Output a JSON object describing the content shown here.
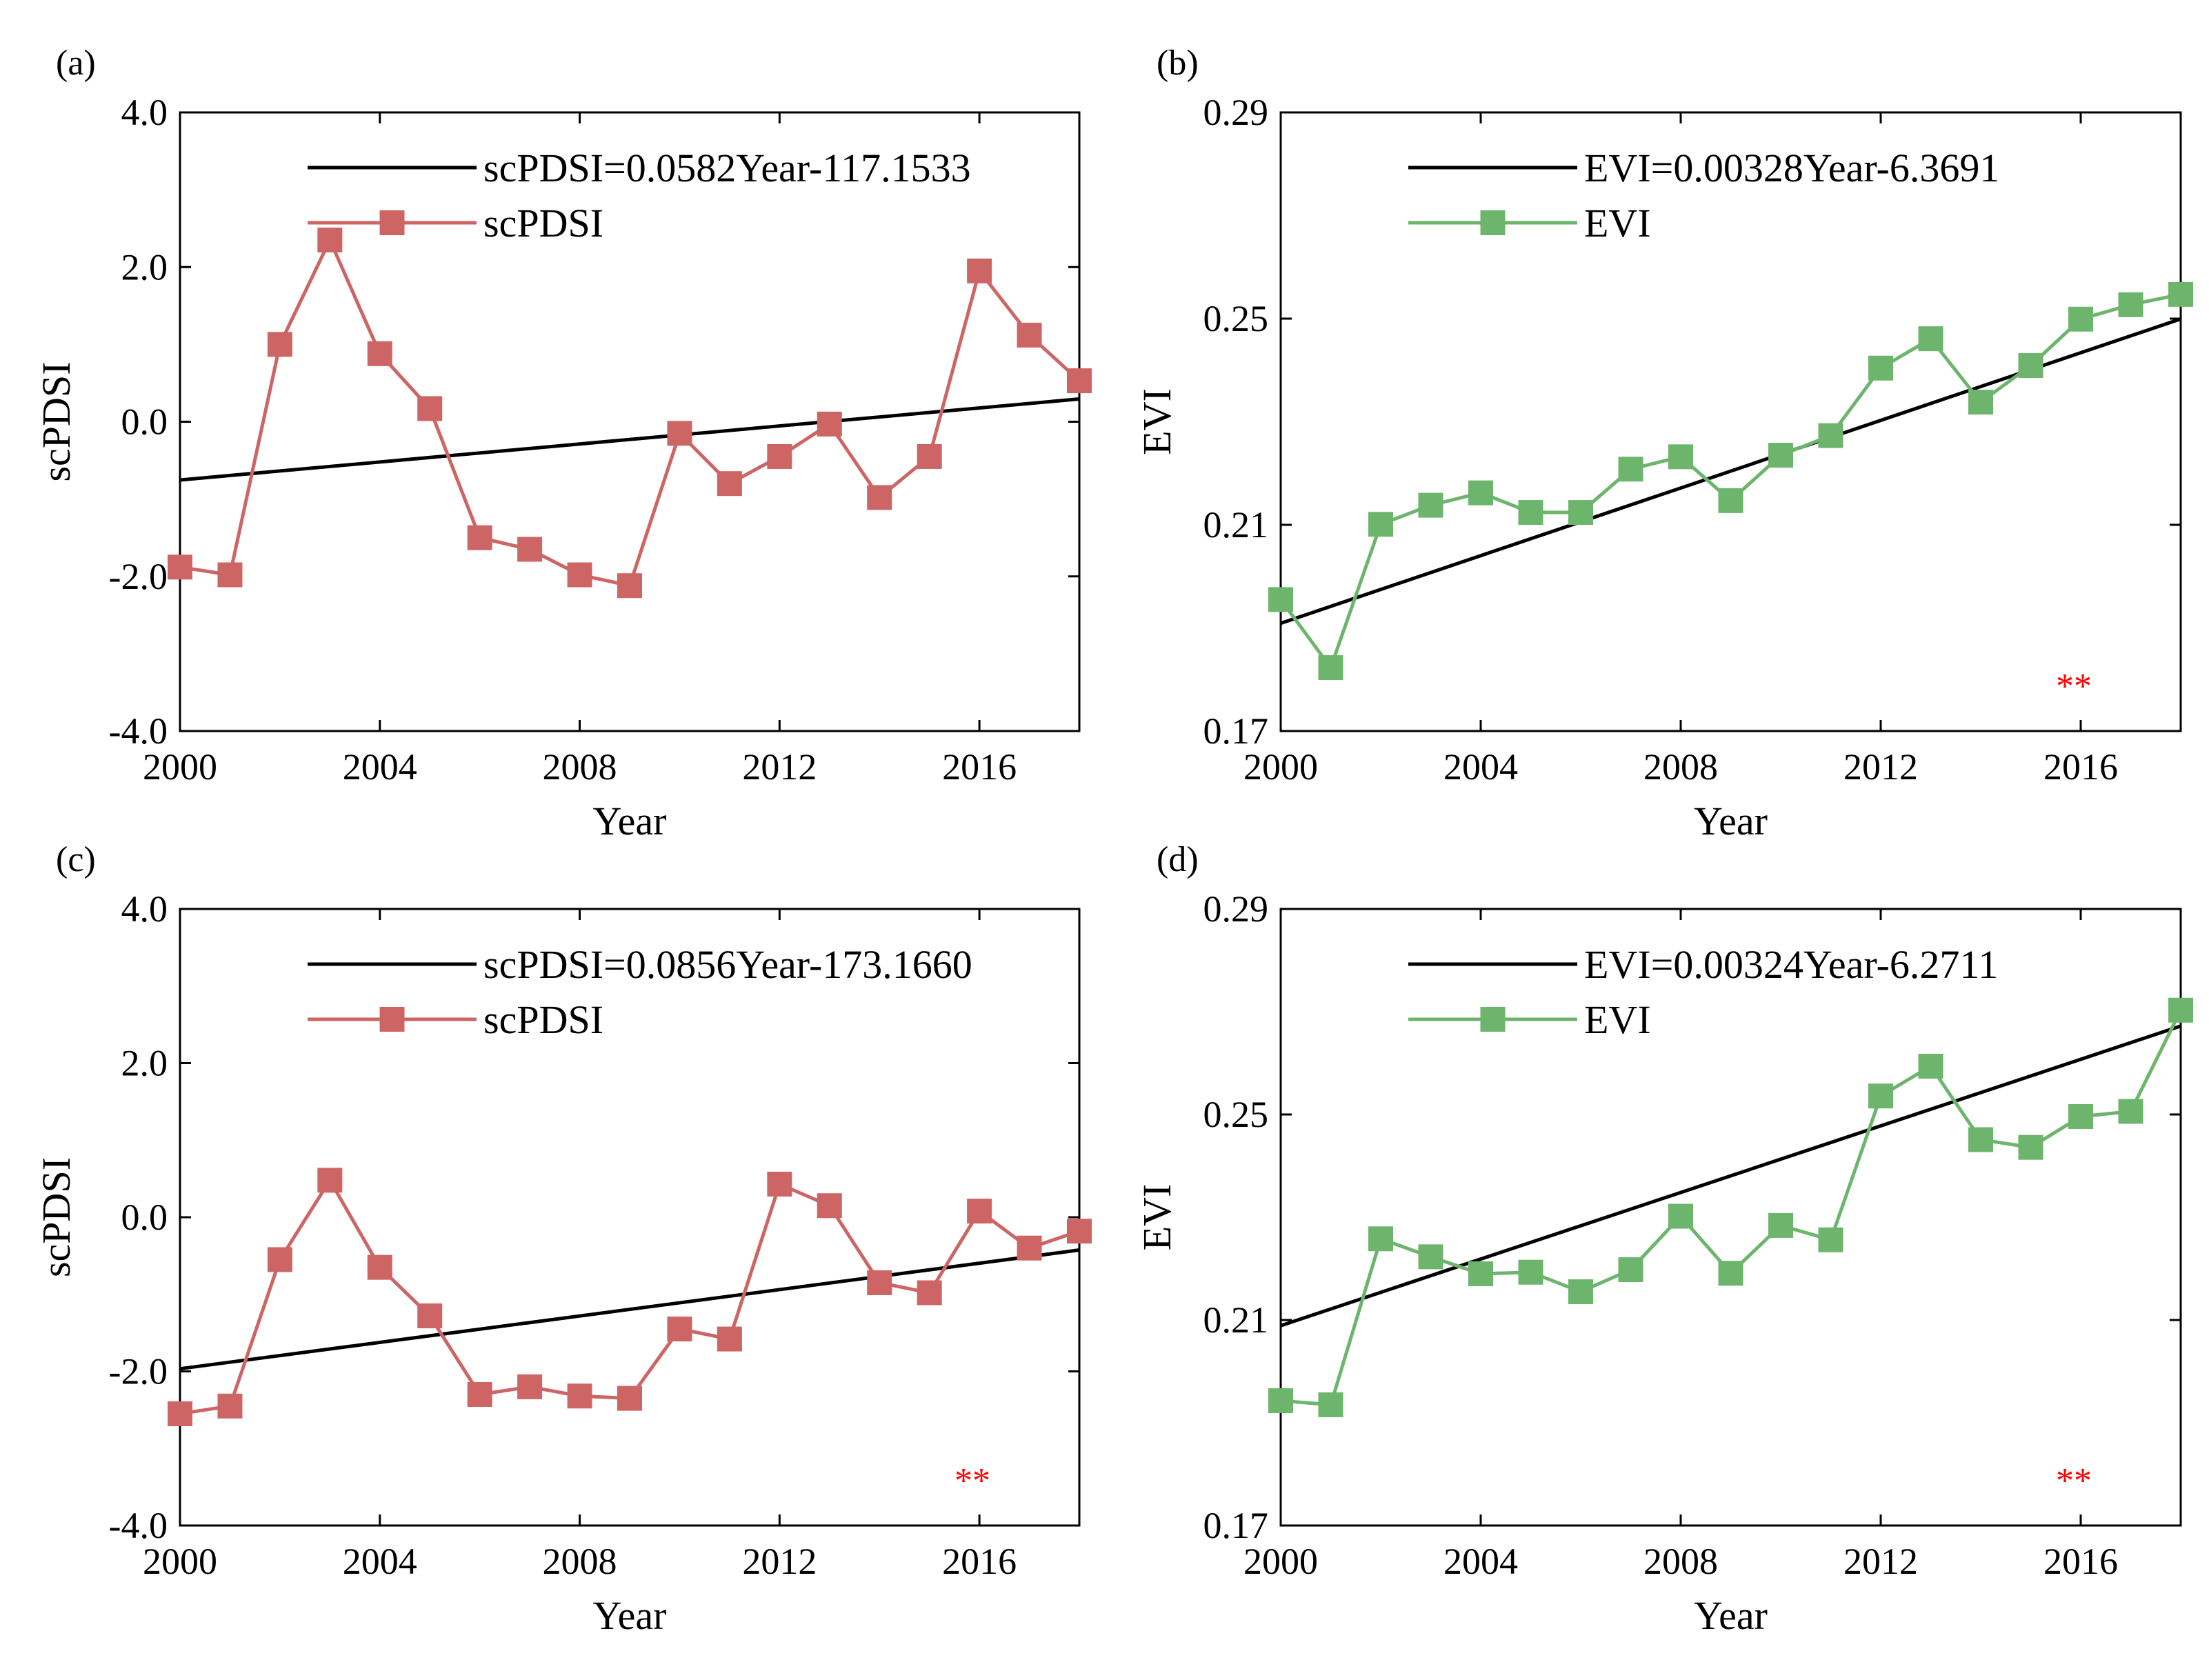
{
  "figure": {
    "colors": {
      "scpdsi_series": "#CD6565",
      "evi_series": "#6DB56D",
      "fit_line": "#000000",
      "significance": "#FF0000",
      "axes": "#000000"
    }
  },
  "chart_data": [
    {
      "id": "a",
      "panel_label": "(a)",
      "type": "line",
      "xlabel": "Year",
      "ylabel": "scPDSI",
      "xlim": [
        2000,
        2018
      ],
      "ylim": [
        -4.0,
        4.0
      ],
      "xticks": [
        2000,
        2004,
        2008,
        2012,
        2016
      ],
      "xtick_labels": [
        "2000",
        "2004",
        "2008",
        "2012",
        "2016"
      ],
      "yticks": [
        -4.0,
        -2.0,
        0.0,
        2.0,
        4.0
      ],
      "ytick_labels": [
        "-4.0",
        "-2.0",
        "0.0",
        "2.0",
        "4.0"
      ],
      "series": [
        {
          "name": "scPDSI",
          "color": "#CD6565",
          "x": [
            2000,
            2001,
            2002,
            2003,
            2004,
            2005,
            2006,
            2007,
            2008,
            2009,
            2010,
            2011,
            2012,
            2013,
            2014,
            2015,
            2016,
            2017,
            2018
          ],
          "values": [
            -1.88,
            -1.98,
            1.0,
            2.35,
            0.88,
            0.17,
            -1.5,
            -1.65,
            -1.98,
            -2.12,
            -0.15,
            -0.8,
            -0.45,
            -0.03,
            -0.98,
            -0.45,
            1.95,
            1.12,
            0.53
          ]
        }
      ],
      "fit": {
        "label": "scPDSI=0.0582Year-117.1533",
        "slope": 0.0582,
        "intercept": -117.1533
      },
      "significance": ""
    },
    {
      "id": "b",
      "panel_label": "(b)",
      "type": "line",
      "xlabel": "Year",
      "ylabel": "EVI",
      "xlim": [
        2000,
        2018
      ],
      "ylim": [
        0.17,
        0.29
      ],
      "xticks": [
        2000,
        2004,
        2008,
        2012,
        2016
      ],
      "xtick_labels": [
        "2000",
        "2004",
        "2008",
        "2012",
        "2016"
      ],
      "yticks": [
        0.17,
        0.21,
        0.25,
        0.29
      ],
      "ytick_labels": [
        "0.17",
        "0.21",
        "0.25",
        "0.29"
      ],
      "series": [
        {
          "name": "EVI",
          "color": "#6DB56D",
          "x": [
            2000,
            2001,
            2002,
            2003,
            2004,
            2005,
            2006,
            2007,
            2008,
            2009,
            2010,
            2011,
            2012,
            2013,
            2014,
            2015,
            2016,
            2017,
            2018
          ],
          "values": [
            0.1955,
            0.1823,
            0.2101,
            0.2138,
            0.2162,
            0.2124,
            0.2124,
            0.2208,
            0.2232,
            0.2147,
            0.2235,
            0.2273,
            0.2404,
            0.2461,
            0.2338,
            0.2409,
            0.2499,
            0.2527,
            0.2547
          ]
        }
      ],
      "fit": {
        "label": "EVI=0.00328Year-6.3691",
        "slope": 0.00328,
        "intercept": -6.3691
      },
      "significance": "**"
    },
    {
      "id": "c",
      "panel_label": "(c)",
      "type": "line",
      "xlabel": "Year",
      "ylabel": "scPDSI",
      "xlim": [
        2000,
        2018
      ],
      "ylim": [
        -4.0,
        4.0
      ],
      "xticks": [
        2000,
        2004,
        2008,
        2012,
        2016
      ],
      "xtick_labels": [
        "2000",
        "2004",
        "2008",
        "2012",
        "2016"
      ],
      "yticks": [
        -4.0,
        -2.0,
        0.0,
        2.0,
        4.0
      ],
      "ytick_labels": [
        "-4.0",
        "-2.0",
        "0.0",
        "2.0",
        "4.0"
      ],
      "series": [
        {
          "name": "scPDSI",
          "color": "#CD6565",
          "x": [
            2000,
            2001,
            2002,
            2003,
            2004,
            2005,
            2006,
            2007,
            2008,
            2009,
            2010,
            2011,
            2012,
            2013,
            2014,
            2015,
            2016,
            2017,
            2018
          ],
          "values": [
            -2.55,
            -2.45,
            -0.55,
            0.48,
            -0.65,
            -1.28,
            -2.3,
            -2.2,
            -2.32,
            -2.35,
            -1.45,
            -1.58,
            0.43,
            0.15,
            -0.85,
            -0.98,
            0.08,
            -0.4,
            -0.18
          ]
        }
      ],
      "fit": {
        "label": "scPDSI=0.0856Year-173.1660",
        "slope": 0.0856,
        "intercept": -173.166
      },
      "significance": "**"
    },
    {
      "id": "d",
      "panel_label": "(d)",
      "type": "line",
      "xlabel": "Year",
      "ylabel": "EVI",
      "xlim": [
        2000,
        2018
      ],
      "ylim": [
        0.17,
        0.29
      ],
      "xticks": [
        2000,
        2004,
        2008,
        2012,
        2016
      ],
      "xtick_labels": [
        "2000",
        "2004",
        "2008",
        "2012",
        "2016"
      ],
      "yticks": [
        0.17,
        0.21,
        0.25,
        0.29
      ],
      "ytick_labels": [
        "0.17",
        "0.21",
        "0.25",
        "0.29"
      ],
      "series": [
        {
          "name": "EVI",
          "color": "#6DB56D",
          "x": [
            2000,
            2001,
            2002,
            2003,
            2004,
            2005,
            2006,
            2007,
            2008,
            2009,
            2010,
            2011,
            2012,
            2013,
            2014,
            2015,
            2016,
            2017,
            2018
          ],
          "values": [
            0.1943,
            0.1935,
            0.2258,
            0.2223,
            0.219,
            0.2193,
            0.2155,
            0.2198,
            0.2302,
            0.2191,
            0.2284,
            0.2256,
            0.2536,
            0.2594,
            0.2451,
            0.2436,
            0.2496,
            0.2506,
            0.2703
          ]
        }
      ],
      "fit": {
        "label": "EVI=0.00324Year-6.2711",
        "slope": 0.00324,
        "intercept": -6.2711
      },
      "significance": "**"
    }
  ]
}
